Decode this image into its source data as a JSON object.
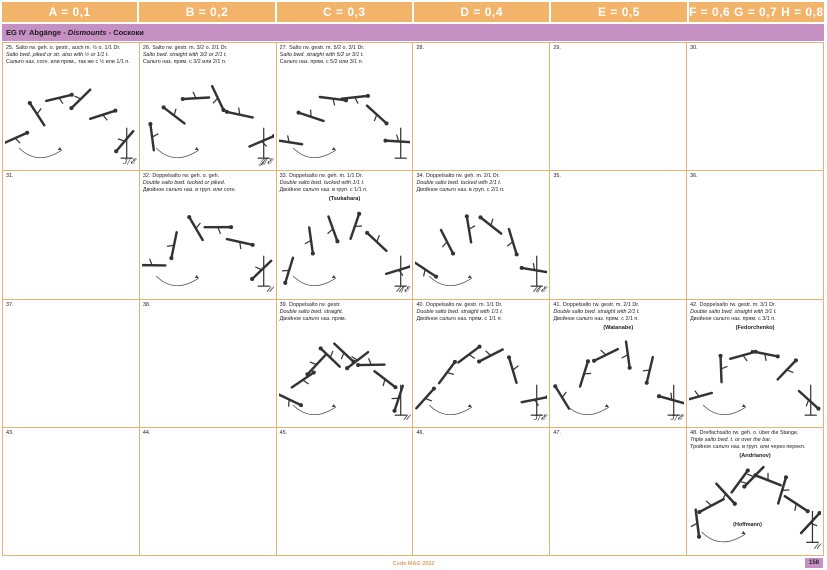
{
  "columns": [
    "A = 0,1",
    "B = 0,2",
    "C = 0,3",
    "D = 0,4",
    "E = 0,5",
    "F = 0,6  G = 0,7  H = 0,8"
  ],
  "group": {
    "code": "EG IV",
    "de": "Abgänge",
    "en": "Dismounts",
    "ru": "Соскоки"
  },
  "cells": [
    {
      "num": "25.",
      "l1": "Salto rw. geh. o. gestr., auch m. ½ o. 1/1 Dr.",
      "l2": "Salto bwd. piked or str. also with ½ or 1/1 t.",
      "l3": "Сальто наз. согн. или прям., так же с ½ или 1/1 п.",
      "named": "",
      "sig": "ᴊ∕𝓔"
    },
    {
      "num": "26.",
      "l1": "Salto rw. gestr. m. 3/2 o. 2/1 Dr.",
      "l2": "Salto bwd. straight with 3/2 or 2/1 t.",
      "l3": "Сальто наз. прям. с 3/2 или 2/1 п.",
      "named": "",
      "sig": "𝓙∕𝓔"
    },
    {
      "num": "27.",
      "l1": "Salto rw. gestr. m. 5/2 o. 3/1 Dr.",
      "l2": "Salto bwd. straight with 5/2 or 3/1 t.",
      "l3": "Сальто наз. прям. с 5/2 или 3/1 п.",
      "named": "",
      "sig": ""
    },
    {
      "num": "28.",
      "l1": "",
      "l2": "",
      "l3": "",
      "named": "",
      "sig": ""
    },
    {
      "num": "29.",
      "l1": "",
      "l2": "",
      "l3": "",
      "named": "",
      "sig": ""
    },
    {
      "num": "30.",
      "l1": "",
      "l2": "",
      "l3": "",
      "named": "",
      "sig": ""
    },
    {
      "num": "31.",
      "l1": "",
      "l2": "",
      "l3": "",
      "named": "",
      "sig": ""
    },
    {
      "num": "32.",
      "l1": "Doppelsalto rw. geh. o. geh.",
      "l2": "Double salto bwd. tucked or piked.",
      "l3": "Двойное сальто наз. в груп. или согн.",
      "named": "",
      "sig": "𝓁𝓁"
    },
    {
      "num": "33.",
      "l1": "Doppelsalto rw. geh. m. 1/1 Dr.",
      "l2": "Double salto bwd. tucked with 1/1 t.",
      "l3": "Двойное сальто наз. в груп. с 1/1 п.",
      "named": "(Tsukahara)",
      "sig": "𝓁𝓁∕𝓔"
    },
    {
      "num": "34.",
      "l1": "Doppelsalto rw. geh. m. 2/1 Dr.",
      "l2": "Double salto bwd. tucked with 2/1 t.",
      "l3": "Двойное сальто наз. в груп. с 2/1 п.",
      "named": "",
      "sig": "𝓁𝓁∕𝓔"
    },
    {
      "num": "35.",
      "l1": "",
      "l2": "",
      "l3": "",
      "named": "",
      "sig": ""
    },
    {
      "num": "36.",
      "l1": "",
      "l2": "",
      "l3": "",
      "named": "",
      "sig": ""
    },
    {
      "num": "37.",
      "l1": "",
      "l2": "",
      "l3": "",
      "named": "",
      "sig": ""
    },
    {
      "num": "38.",
      "l1": "",
      "l2": "",
      "l3": "",
      "named": "",
      "sig": ""
    },
    {
      "num": "39.",
      "l1": "Doppelsalto rw. gestr.",
      "l2": "Double salto bwd. straight.",
      "l3": "Двойное сальто наз. прям.",
      "named": "",
      "sig": "𝓁𝓁"
    },
    {
      "num": "40.",
      "l1": "Doppelsalto rw. gestr. m. 1/1 Dr.",
      "l2": "Double salto bwd. straight with 1/1 t.",
      "l3": "Двойное сальто наз. прям. с 1/1 п.",
      "named": "",
      "sig": "ᴊ∕𝓔"
    },
    {
      "num": "41.",
      "l1": "Doppelsalto rw. gestr. m. 2/1 Dr.",
      "l2": "Double salto bwd. straight with 2/1 t.",
      "l3": "Двойное сальто наз. прям. с 2/1 п.",
      "named": "(Watanabe)",
      "sig": "ᴊ∕𝓔"
    },
    {
      "num": "42.",
      "l1": "Doppelsalto rw. gestr. m. 3/1 Dr.",
      "l2": "Double salto bwd. straight with 3/1 t.",
      "l3": "Двойное сальто наз. прям. с 3/1 п.",
      "named": "(Fedorchenko)",
      "sig": ""
    },
    {
      "num": "43.",
      "l1": "",
      "l2": "",
      "l3": "",
      "named": "",
      "sig": ""
    },
    {
      "num": "44.",
      "l1": "",
      "l2": "",
      "l3": "",
      "named": "",
      "sig": ""
    },
    {
      "num": "45.",
      "l1": "",
      "l2": "",
      "l3": "",
      "named": "",
      "sig": ""
    },
    {
      "num": "46.",
      "l1": "",
      "l2": "",
      "l3": "",
      "named": "",
      "sig": ""
    },
    {
      "num": "47.",
      "l1": "",
      "l2": "",
      "l3": "",
      "named": "",
      "sig": ""
    },
    {
      "num": "48.",
      "l1": "Dreifachsalto rw. geh. o. über die Stange.",
      "l2": "Triple salto bwd. t. or over the bar.",
      "l3": "Тройное сальто наз. в груп. или через перекл.",
      "named": "(Andrianov)",
      "named_b": "(Hoffmann)",
      "sig": "𝓁𝓁"
    }
  ],
  "footer": {
    "center": "Code MAG 2022",
    "page": "158"
  },
  "colors": {
    "header": "#f2b36b",
    "band": "#c790c5",
    "grid": "#e6b27a"
  }
}
